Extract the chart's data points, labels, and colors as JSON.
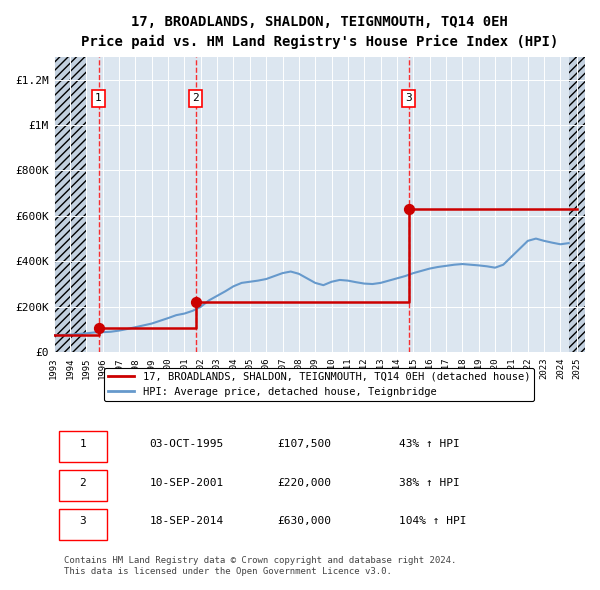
{
  "title": "17, BROADLANDS, SHALDON, TEIGNMOUTH, TQ14 0EH",
  "subtitle": "Price paid vs. HM Land Registry's House Price Index (HPI)",
  "ylabel": "",
  "xlabel": "",
  "ylim": [
    0,
    1300000
  ],
  "yticks": [
    0,
    200000,
    400000,
    600000,
    800000,
    1000000,
    1200000
  ],
  "ytick_labels": [
    "£0",
    "£200K",
    "£400K",
    "£600K",
    "£800K",
    "£1M",
    "£1.2M"
  ],
  "background_color": "#ffffff",
  "plot_bg_color": "#dce6f0",
  "hatch_color": "#b8c8d8",
  "sale_dates_num": [
    1995.75,
    2001.69,
    2014.71
  ],
  "sale_prices": [
    107500,
    220000,
    630000
  ],
  "sale_labels": [
    "1",
    "2",
    "3"
  ],
  "sale_dot_color": "#cc0000",
  "property_line_color": "#cc0000",
  "hpi_line_color": "#6699cc",
  "legend1_label": "17, BROADLANDS, SHALDON, TEIGNMOUTH, TQ14 0EH (detached house)",
  "legend2_label": "HPI: Average price, detached house, Teignbridge",
  "table_rows": [
    [
      "1",
      "03-OCT-1995",
      "£107,500",
      "43% ↑ HPI"
    ],
    [
      "2",
      "10-SEP-2001",
      "£220,000",
      "38% ↑ HPI"
    ],
    [
      "3",
      "18-SEP-2014",
      "£630,000",
      "104% ↑ HPI"
    ]
  ],
  "footer": "Contains HM Land Registry data © Crown copyright and database right 2024.\nThis data is licensed under the Open Government Licence v3.0.",
  "hpi_x": [
    1993.0,
    1993.5,
    1994.0,
    1994.5,
    1995.0,
    1995.5,
    1996.0,
    1996.5,
    1997.0,
    1997.5,
    1998.0,
    1998.5,
    1999.0,
    1999.5,
    2000.0,
    2000.5,
    2001.0,
    2001.5,
    2002.0,
    2002.5,
    2003.0,
    2003.5,
    2004.0,
    2004.5,
    2005.0,
    2005.5,
    2006.0,
    2006.5,
    2007.0,
    2007.5,
    2008.0,
    2008.5,
    2009.0,
    2009.5,
    2010.0,
    2010.5,
    2011.0,
    2011.5,
    2012.0,
    2012.5,
    2013.0,
    2013.5,
    2014.0,
    2014.5,
    2015.0,
    2015.5,
    2016.0,
    2016.5,
    2017.0,
    2017.5,
    2018.0,
    2018.5,
    2019.0,
    2019.5,
    2020.0,
    2020.5,
    2021.0,
    2021.5,
    2022.0,
    2022.5,
    2023.0,
    2023.5,
    2024.0,
    2024.5
  ],
  "hpi_y": [
    75000,
    76000,
    77000,
    80000,
    83000,
    87000,
    88000,
    90000,
    95000,
    102000,
    110000,
    118000,
    126000,
    138000,
    150000,
    163000,
    170000,
    182000,
    200000,
    228000,
    248000,
    268000,
    290000,
    305000,
    310000,
    315000,
    322000,
    335000,
    348000,
    355000,
    345000,
    325000,
    305000,
    295000,
    310000,
    318000,
    315000,
    308000,
    302000,
    300000,
    305000,
    315000,
    325000,
    335000,
    348000,
    358000,
    368000,
    375000,
    380000,
    385000,
    388000,
    385000,
    382000,
    378000,
    372000,
    385000,
    420000,
    455000,
    490000,
    500000,
    490000,
    482000,
    475000,
    480000
  ],
  "prop_x": [
    1993.0,
    1995.75,
    1995.75,
    2001.69,
    2001.69,
    2014.71,
    2014.71,
    2025.0
  ],
  "prop_y": [
    75000,
    75000,
    107500,
    107500,
    220000,
    220000,
    630000,
    630000
  ],
  "xmin": 1993.0,
  "xmax": 2025.5,
  "xtick_years": [
    1993,
    1994,
    1995,
    1996,
    1997,
    1998,
    1999,
    2000,
    2001,
    2002,
    2003,
    2004,
    2005,
    2006,
    2007,
    2008,
    2009,
    2010,
    2011,
    2012,
    2013,
    2014,
    2015,
    2016,
    2017,
    2018,
    2019,
    2020,
    2021,
    2022,
    2023,
    2024,
    2025
  ]
}
